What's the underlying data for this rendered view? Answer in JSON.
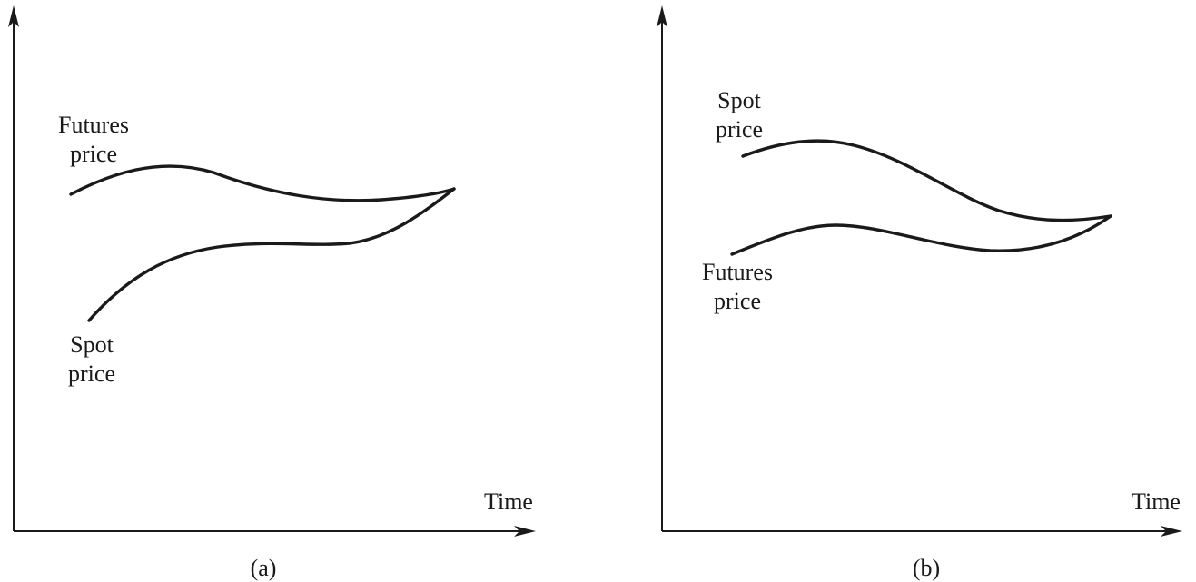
{
  "panels": [
    {
      "caption": "(a)",
      "x_axis_label": "Time",
      "curves": [
        {
          "line1": "Futures",
          "line2": "price"
        },
        {
          "line1": "Spot",
          "line2": "price"
        }
      ]
    },
    {
      "caption": "(b)",
      "x_axis_label": "Time",
      "curves": [
        {
          "line1": "Spot",
          "line2": "price"
        },
        {
          "line1": "Futures",
          "line2": "price"
        }
      ]
    }
  ]
}
